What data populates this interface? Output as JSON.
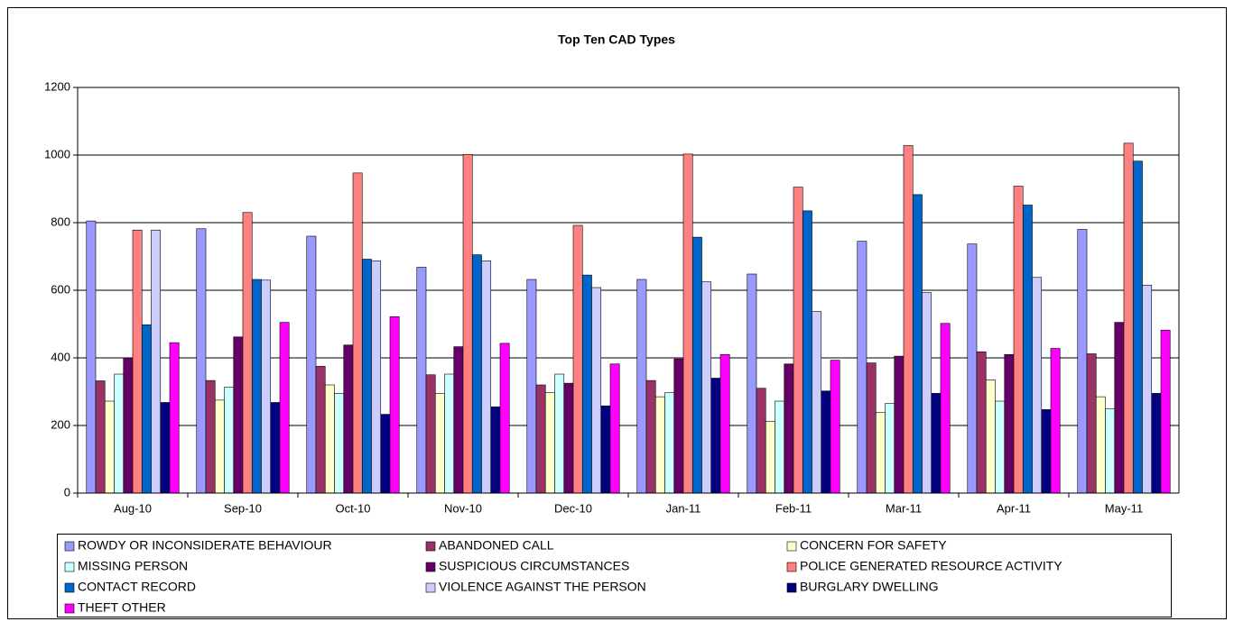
{
  "chart_data": {
    "type": "bar",
    "title": "Top Ten CAD Types",
    "categories": [
      "Aug-10",
      "Sep-10",
      "Oct-10",
      "Nov-10",
      "Dec-10",
      "Jan-11",
      "Feb-11",
      "Mar-11",
      "Apr-11",
      "May-11"
    ],
    "ylim": [
      0,
      1200
    ],
    "yticks": [
      0,
      200,
      400,
      600,
      800,
      1000,
      1200
    ],
    "grid": true,
    "series": [
      {
        "name": "ROWDY OR INCONSIDERATE BEHAVIOUR",
        "color": "#9999FF",
        "values": [
          805,
          782,
          760,
          668,
          632,
          632,
          648,
          745,
          737,
          780
        ]
      },
      {
        "name": "ABANDONED CALL",
        "color": "#993366",
        "values": [
          332,
          333,
          375,
          350,
          320,
          333,
          310,
          385,
          418,
          412
        ]
      },
      {
        "name": "CONCERN FOR SAFETY",
        "color": "#FFFFCC",
        "values": [
          272,
          275,
          320,
          295,
          297,
          285,
          212,
          238,
          335,
          285
        ]
      },
      {
        "name": "MISSING PERSON",
        "color": "#CCFFFF",
        "values": [
          352,
          313,
          295,
          352,
          352,
          297,
          272,
          265,
          272,
          250
        ]
      },
      {
        "name": "SUSPICIOUS CIRCUMSTANCES",
        "color": "#660066",
        "values": [
          400,
          462,
          438,
          433,
          325,
          397,
          382,
          405,
          410,
          505
        ]
      },
      {
        "name": "POLICE GENERATED RESOURCE ACTIVITY",
        "color": "#FF8080",
        "values": [
          778,
          830,
          947,
          1002,
          792,
          1003,
          905,
          1028,
          908,
          1035
        ]
      },
      {
        "name": "CONTACT RECORD",
        "color": "#0066CC",
        "values": [
          498,
          632,
          692,
          705,
          645,
          757,
          835,
          883,
          852,
          982
        ]
      },
      {
        "name": "VIOLENCE AGAINST THE PERSON",
        "color": "#CCCCFF",
        "values": [
          778,
          630,
          687,
          687,
          608,
          625,
          537,
          593,
          638,
          615
        ]
      },
      {
        "name": "BURGLARY DWELLING",
        "color": "#000080",
        "values": [
          268,
          268,
          233,
          255,
          258,
          340,
          302,
          295,
          247,
          295
        ]
      },
      {
        "name": "THEFT OTHER",
        "color": "#FF00FF",
        "values": [
          445,
          505,
          522,
          443,
          382,
          410,
          393,
          502,
          428,
          482
        ]
      }
    ]
  }
}
